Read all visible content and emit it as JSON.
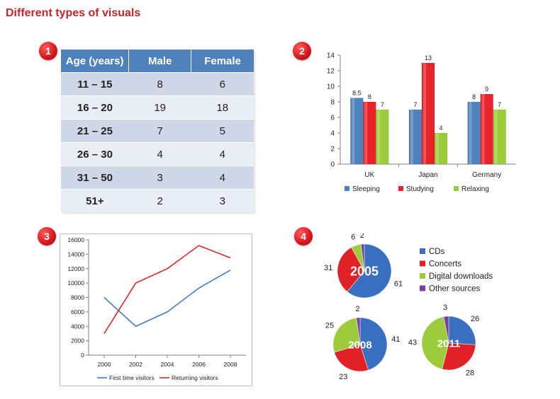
{
  "page": {
    "title": "Different types of visuals",
    "badges": [
      "1",
      "2",
      "3",
      "4"
    ]
  },
  "chart_data": [
    {
      "type": "table",
      "columns": [
        "Age (years)",
        "Male",
        "Female"
      ],
      "rows": [
        [
          "11 – 15",
          "8",
          "6"
        ],
        [
          "16 – 20",
          "19",
          "18"
        ],
        [
          "21 – 25",
          "7",
          "5"
        ],
        [
          "26 – 30",
          "4",
          "4"
        ],
        [
          "31 – 50",
          "3",
          "4"
        ],
        [
          "51+",
          "2",
          "3"
        ]
      ]
    },
    {
      "type": "bar",
      "categories": [
        "UK",
        "Japan",
        "Germany"
      ],
      "series": [
        {
          "name": "Sleeping",
          "values": [
            8.5,
            7,
            8
          ],
          "labels": [
            "8.5",
            "7",
            "8"
          ],
          "color": "#4f81bd"
        },
        {
          "name": "Studying",
          "values": [
            8,
            13,
            9
          ],
          "labels": [
            "8",
            "13",
            "9"
          ],
          "color": "#e8232a"
        },
        {
          "name": "Relaxing",
          "values": [
            7,
            4,
            7
          ],
          "labels": [
            "7",
            "4",
            "7"
          ],
          "color": "#9bcc3c"
        }
      ],
      "ylim": [
        0,
        14
      ],
      "yticks": [
        0,
        2,
        4,
        6,
        8,
        10,
        12,
        14
      ],
      "legend": "bottom"
    },
    {
      "type": "line",
      "x": [
        2000,
        2002,
        2004,
        2006,
        2008
      ],
      "xticks": [
        "2000",
        "2002",
        "2004",
        "2006",
        "2008"
      ],
      "series": [
        {
          "name": "First time visitors",
          "values": [
            8000,
            4000,
            6000,
            9300,
            11800
          ],
          "color": "#4a7ebf"
        },
        {
          "name": "Returning visitors",
          "values": [
            3000,
            10000,
            12000,
            15200,
            13500
          ],
          "color": "#d42a2a"
        }
      ],
      "ylim": [
        0,
        16000
      ],
      "yticks": [
        "0",
        "2000",
        "4000",
        "6000",
        "8000",
        "10000",
        "12000",
        "14000",
        "16000"
      ],
      "legend": "bottom"
    },
    {
      "type": "pie",
      "legend": [
        "CDs",
        "Concerts",
        "Digital downloads",
        "Other sources"
      ],
      "colors": [
        "#3a6fc0",
        "#e02128",
        "#9ccc3c",
        "#7b3fa0"
      ],
      "pies": [
        {
          "year": "2005",
          "values": [
            61,
            31,
            6,
            2
          ],
          "labels": [
            "61",
            "31",
            "6",
            "2"
          ]
        },
        {
          "year": "2008",
          "values": [
            41,
            23,
            25,
            2
          ],
          "labels": [
            "41",
            "23",
            "25",
            "2"
          ]
        },
        {
          "year": "2011",
          "values": [
            26,
            28,
            43,
            3
          ],
          "labels": [
            "26",
            "28",
            "43",
            "3"
          ]
        }
      ]
    }
  ]
}
